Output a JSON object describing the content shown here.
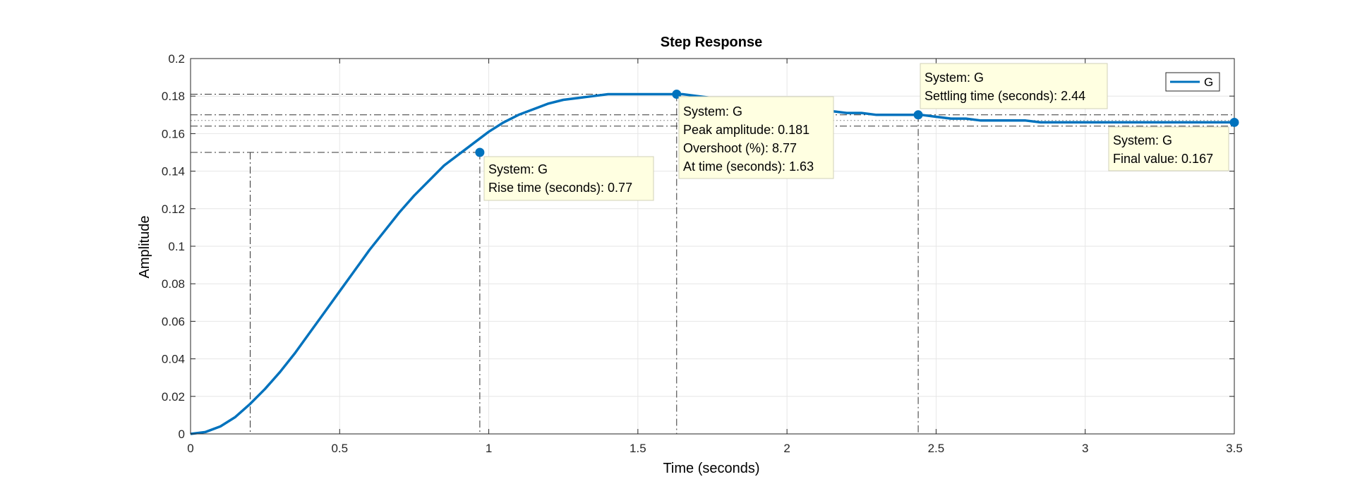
{
  "chart_data": {
    "type": "line",
    "title": "Step Response",
    "xlabel": "Time (seconds)",
    "ylabel": "Amplitude",
    "xlim": [
      0,
      3.5
    ],
    "ylim": [
      0,
      0.2
    ],
    "grid": true,
    "x_ticks": [
      "0",
      "0.5",
      "1",
      "1.5",
      "2",
      "2.5",
      "3",
      "3.5"
    ],
    "y_ticks": [
      "0",
      "0.02",
      "0.04",
      "0.06",
      "0.08",
      "0.1",
      "0.12",
      "0.14",
      "0.16",
      "0.18",
      "0.2"
    ],
    "legend": {
      "entries": [
        "G"
      ],
      "location": "top-right"
    },
    "series": [
      {
        "name": "G",
        "color": "#0072BD",
        "x": [
          0,
          0.05,
          0.1,
          0.15,
          0.2,
          0.25,
          0.3,
          0.35,
          0.4,
          0.45,
          0.5,
          0.55,
          0.6,
          0.65,
          0.7,
          0.75,
          0.8,
          0.85,
          0.9,
          0.95,
          1.0,
          1.05,
          1.1,
          1.15,
          1.2,
          1.25,
          1.3,
          1.35,
          1.4,
          1.45,
          1.5,
          1.55,
          1.6,
          1.65,
          1.7,
          1.75,
          1.8,
          1.85,
          1.9,
          1.95,
          2.0,
          2.05,
          2.1,
          2.15,
          2.2,
          2.25,
          2.3,
          2.35,
          2.4,
          2.45,
          2.5,
          2.55,
          2.6,
          2.65,
          2.7,
          2.75,
          2.8,
          2.85,
          2.9,
          2.95,
          3.0,
          3.05,
          3.1,
          3.15,
          3.2,
          3.25,
          3.3,
          3.35,
          3.4,
          3.45,
          3.5
        ],
        "y": [
          0.0,
          0.001,
          0.004,
          0.009,
          0.016,
          0.024,
          0.033,
          0.043,
          0.054,
          0.065,
          0.076,
          0.087,
          0.098,
          0.108,
          0.118,
          0.127,
          0.135,
          0.143,
          0.149,
          0.155,
          0.161,
          0.166,
          0.17,
          0.173,
          0.176,
          0.178,
          0.179,
          0.18,
          0.181,
          0.181,
          0.181,
          0.181,
          0.181,
          0.181,
          0.18,
          0.179,
          0.178,
          0.177,
          0.176,
          0.175,
          0.174,
          0.173,
          0.172,
          0.172,
          0.171,
          0.171,
          0.17,
          0.17,
          0.17,
          0.17,
          0.169,
          0.168,
          0.168,
          0.167,
          0.167,
          0.167,
          0.167,
          0.166,
          0.166,
          0.166,
          0.166,
          0.166,
          0.166,
          0.166,
          0.166,
          0.166,
          0.166,
          0.166,
          0.166,
          0.166,
          0.166
        ]
      }
    ],
    "reference_lines": {
      "horizontal": [
        0.181,
        0.17,
        0.167,
        0.164,
        0.15
      ],
      "vertical": [
        0.2,
        0.97,
        1.63,
        2.44
      ]
    },
    "markers": [
      {
        "x": 0.97,
        "y": 0.15
      },
      {
        "x": 1.63,
        "y": 0.181
      },
      {
        "x": 2.44,
        "y": 0.17
      },
      {
        "x": 3.5,
        "y": 0.166
      }
    ],
    "datatips": [
      {
        "lines": [
          "System: G",
          "Rise time (seconds): 0.77"
        ]
      },
      {
        "lines": [
          "System: G",
          "Peak amplitude: 0.181",
          "Overshoot (%): 8.77",
          "At time (seconds): 1.63"
        ]
      },
      {
        "lines": [
          "System: G",
          "Settling time (seconds): 2.44"
        ]
      },
      {
        "lines": [
          "System: G",
          "Final value: 0.167"
        ]
      }
    ]
  }
}
